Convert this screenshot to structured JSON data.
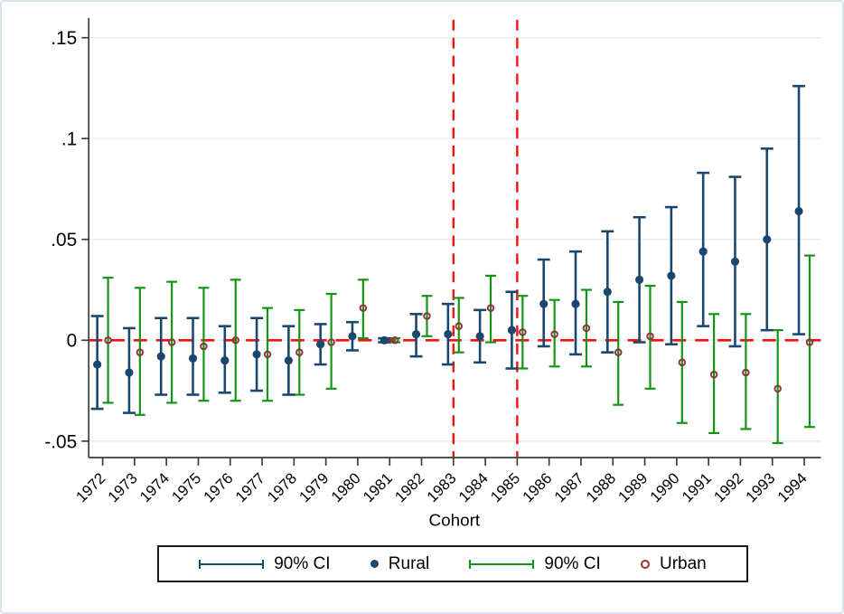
{
  "colors": {
    "navy": "#1a476f",
    "green": "#159315",
    "maroon": "#90353b",
    "reference_red": "#fe0d0d",
    "gridline": "#e4eef1",
    "axis": "#3c3c3c",
    "figure_border": "#d7e2ee",
    "background": "#ffffff",
    "legend_border": "#1a1a1a"
  },
  "chart_data": {
    "type": "scatter",
    "subtype": "coefficient-plot-with-error-bars",
    "title": "",
    "xlabel": "Cohort",
    "ylabel": "",
    "x": [
      1972,
      1973,
      1974,
      1975,
      1976,
      1977,
      1978,
      1979,
      1980,
      1981,
      1982,
      1983,
      1984,
      1985,
      1986,
      1987,
      1988,
      1989,
      1990,
      1991,
      1992,
      1993,
      1994
    ],
    "ylim": [
      -0.058,
      0.158
    ],
    "yticks": [
      -0.05,
      0,
      0.05,
      0.1,
      0.15
    ],
    "ytick_labels": [
      "-.05",
      "0",
      ".05",
      ".1",
      ".15"
    ],
    "grid": true,
    "reference_lines": {
      "horizontal_y": 0,
      "vertical_x": [
        1983,
        1985
      ],
      "style": "dashed",
      "color": "#fe0d0d"
    },
    "series": [
      {
        "name": "Rural",
        "marker": "filled-circle",
        "color": "#1a476f",
        "ci_label": "90% CI",
        "values": [
          -0.012,
          -0.016,
          -0.008,
          -0.009,
          -0.01,
          -0.007,
          -0.01,
          -0.002,
          0.002,
          0.0,
          0.003,
          0.003,
          0.002,
          0.005,
          0.018,
          0.018,
          0.024,
          0.03,
          0.032,
          0.044,
          0.039,
          0.05,
          0.064
        ],
        "ci_low": [
          -0.034,
          -0.036,
          -0.027,
          -0.027,
          -0.026,
          -0.025,
          -0.027,
          -0.012,
          -0.005,
          -0.001,
          -0.008,
          -0.012,
          -0.011,
          -0.014,
          -0.003,
          -0.007,
          -0.006,
          -0.001,
          -0.002,
          0.007,
          -0.003,
          0.005,
          0.003
        ],
        "ci_high": [
          0.012,
          0.006,
          0.011,
          0.011,
          0.007,
          0.011,
          0.007,
          0.008,
          0.009,
          0.001,
          0.013,
          0.018,
          0.015,
          0.024,
          0.04,
          0.044,
          0.054,
          0.061,
          0.066,
          0.083,
          0.081,
          0.095,
          0.126
        ]
      },
      {
        "name": "Urban",
        "marker": "hollow-circle",
        "color": "#90353b",
        "ci_color": "#159315",
        "ci_label": "90% CI",
        "values": [
          0.0,
          -0.006,
          -0.001,
          -0.003,
          0.0,
          -0.007,
          -0.006,
          -0.001,
          0.016,
          0.0,
          0.012,
          0.007,
          0.016,
          0.004,
          0.003,
          0.006,
          -0.006,
          0.002,
          -0.011,
          -0.017,
          -0.016,
          -0.024,
          -0.001
        ],
        "ci_low": [
          -0.031,
          -0.037,
          -0.031,
          -0.03,
          -0.03,
          -0.03,
          -0.027,
          -0.024,
          0.001,
          -0.001,
          0.002,
          -0.006,
          -0.001,
          -0.014,
          -0.013,
          -0.013,
          -0.032,
          -0.024,
          -0.041,
          -0.046,
          -0.044,
          -0.051,
          -0.043
        ],
        "ci_high": [
          0.031,
          0.026,
          0.029,
          0.026,
          0.03,
          0.016,
          0.015,
          0.023,
          0.03,
          0.001,
          0.022,
          0.021,
          0.032,
          0.022,
          0.02,
          0.025,
          0.019,
          0.027,
          0.019,
          0.013,
          0.013,
          0.005,
          0.042
        ]
      }
    ],
    "legend": {
      "position": "bottom",
      "entries": [
        {
          "glyph": "navy-ci-line",
          "label": "90% CI"
        },
        {
          "glyph": "navy-filled-dot",
          "label": "Rural"
        },
        {
          "glyph": "green-ci-line",
          "label": "90% CI"
        },
        {
          "glyph": "maroon-hollow-dot",
          "label": "Urban"
        }
      ]
    }
  }
}
